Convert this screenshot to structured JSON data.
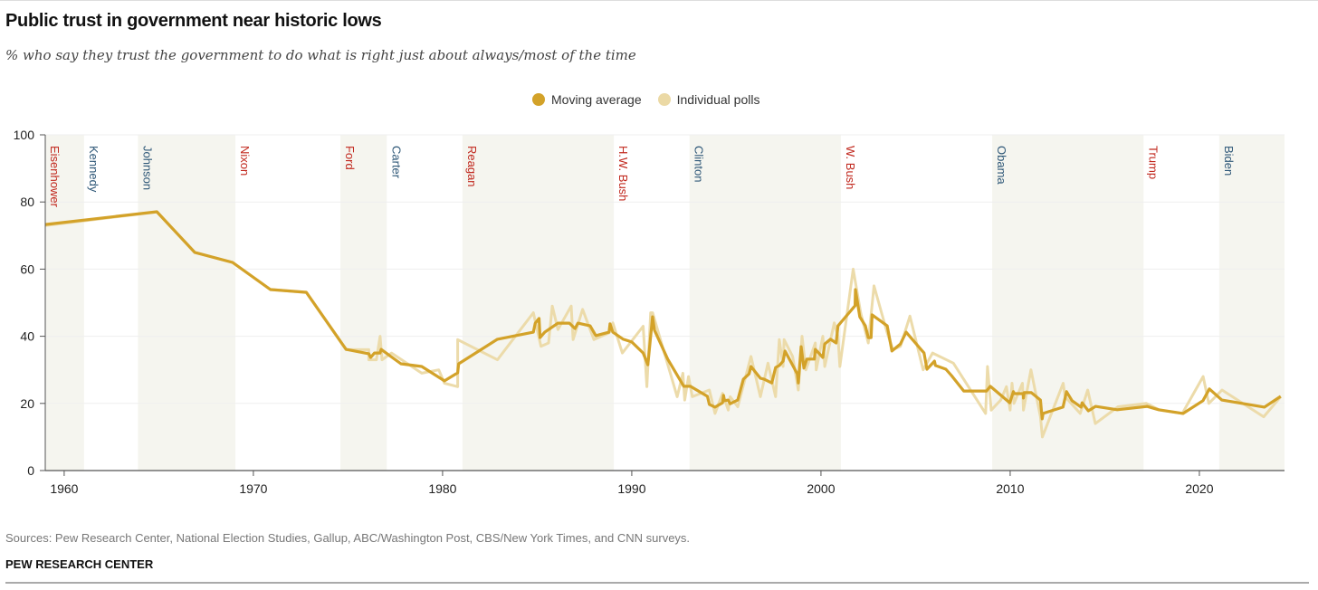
{
  "header": {
    "title": "Public trust in government near historic lows",
    "subtitle": "% who say they trust the government to do what is right just about always/most of the time"
  },
  "footer": {
    "source": "Sources: Pew Research Center, National Election Studies, Gallup, ABC/Washington Post, CBS/New York Times, and CNN surveys.",
    "org": "PEW RESEARCH CENTER"
  },
  "colors": {
    "moving_average": "#D3A229",
    "individual_polls": "#EBD9A5",
    "band": "#F5F5EF",
    "republican": "#C1281E",
    "democrat": "#2F5878",
    "axis": "#555555",
    "grid": "#EFEFEF"
  },
  "chart_data": {
    "type": "line",
    "title": "Public trust in government near historic lows",
    "xlabel": "",
    "ylabel": "",
    "xlim": [
      1959.0,
      2024.5
    ],
    "ylim": [
      0,
      100
    ],
    "x_ticks": [
      1960,
      1970,
      1980,
      1990,
      2000,
      2010,
      2020
    ],
    "y_ticks": [
      0,
      20,
      40,
      60,
      80,
      100
    ],
    "grid": true,
    "legend": {
      "placement": "top-center",
      "entries": [
        "Moving average",
        "Individual polls"
      ]
    },
    "presidents": [
      {
        "name": "Eisenhower",
        "start": 1959.0,
        "end": 1961.05,
        "party": "R",
        "shaded": true
      },
      {
        "name": "Kennedy",
        "start": 1961.05,
        "end": 1963.9,
        "party": "D",
        "shaded": false
      },
      {
        "name": "Johnson",
        "start": 1963.9,
        "end": 1969.05,
        "party": "D",
        "shaded": true
      },
      {
        "name": "Nixon",
        "start": 1969.05,
        "end": 1974.6,
        "party": "R",
        "shaded": false
      },
      {
        "name": "Ford",
        "start": 1974.6,
        "end": 1977.05,
        "party": "R",
        "shaded": true
      },
      {
        "name": "Carter",
        "start": 1977.05,
        "end": 1981.05,
        "party": "D",
        "shaded": false
      },
      {
        "name": "Reagan",
        "start": 1981.05,
        "end": 1989.05,
        "party": "R",
        "shaded": true
      },
      {
        "name": "H.W. Bush",
        "start": 1989.05,
        "end": 1993.05,
        "party": "R",
        "shaded": false
      },
      {
        "name": "Clinton",
        "start": 1993.05,
        "end": 2001.05,
        "party": "D",
        "shaded": true
      },
      {
        "name": "W. Bush",
        "start": 2001.05,
        "end": 2009.05,
        "party": "R",
        "shaded": false
      },
      {
        "name": "Obama",
        "start": 2009.05,
        "end": 2017.05,
        "party": "D",
        "shaded": true
      },
      {
        "name": "Trump",
        "start": 2017.05,
        "end": 2021.05,
        "party": "R",
        "shaded": false
      },
      {
        "name": "Biden",
        "start": 2021.05,
        "end": 2024.5,
        "party": "D",
        "shaded": true
      }
    ],
    "series": [
      {
        "name": "Individual polls",
        "points": [
          [
            1959.0,
            73
          ],
          [
            1964.9,
            77
          ],
          [
            1966.9,
            65
          ],
          [
            1968.9,
            62
          ],
          [
            1970.9,
            54
          ],
          [
            1972.8,
            53
          ],
          [
            1974.9,
            36
          ],
          [
            1976.1,
            36
          ],
          [
            1976.1,
            33
          ],
          [
            1976.5,
            33
          ],
          [
            1976.7,
            40
          ],
          [
            1976.8,
            33
          ],
          [
            1977.3,
            35
          ],
          [
            1978.9,
            29
          ],
          [
            1979.8,
            30
          ],
          [
            1980.1,
            26
          ],
          [
            1980.8,
            25
          ],
          [
            1980.8,
            39
          ],
          [
            1982.9,
            33
          ],
          [
            1984.8,
            47
          ],
          [
            1985.2,
            37
          ],
          [
            1985.6,
            38
          ],
          [
            1985.8,
            49
          ],
          [
            1986.1,
            42
          ],
          [
            1986.8,
            49
          ],
          [
            1986.9,
            39
          ],
          [
            1987.4,
            48
          ],
          [
            1988.0,
            39
          ],
          [
            1988.8,
            41
          ],
          [
            1989.0,
            44
          ],
          [
            1989.5,
            35
          ],
          [
            1990.6,
            43
          ],
          [
            1990.8,
            25
          ],
          [
            1991.0,
            47
          ],
          [
            1991.1,
            47
          ],
          [
            1992.4,
            22
          ],
          [
            1992.7,
            29
          ],
          [
            1992.8,
            21
          ],
          [
            1993.0,
            28
          ],
          [
            1993.2,
            22
          ],
          [
            1994.1,
            24
          ],
          [
            1994.4,
            17
          ],
          [
            1994.8,
            23
          ],
          [
            1995.1,
            18
          ],
          [
            1995.2,
            22
          ],
          [
            1995.6,
            19
          ],
          [
            1996.3,
            34
          ],
          [
            1996.8,
            22
          ],
          [
            1997.2,
            32
          ],
          [
            1997.6,
            22
          ],
          [
            1997.8,
            39
          ],
          [
            1998.0,
            31
          ],
          [
            1998.05,
            39
          ],
          [
            1998.5,
            34
          ],
          [
            1998.8,
            24
          ],
          [
            1999.0,
            40
          ],
          [
            1999.2,
            30
          ],
          [
            1999.7,
            38
          ],
          [
            1999.75,
            30
          ],
          [
            2000.1,
            40
          ],
          [
            2000.2,
            31
          ],
          [
            2000.7,
            44
          ],
          [
            2000.9,
            40
          ],
          [
            2001.0,
            31
          ],
          [
            2001.7,
            60
          ],
          [
            2002.1,
            47
          ],
          [
            2002.5,
            38
          ],
          [
            2002.8,
            55
          ],
          [
            2003.5,
            41
          ],
          [
            2003.8,
            36
          ],
          [
            2004.2,
            37
          ],
          [
            2004.7,
            46
          ],
          [
            2005.4,
            30
          ],
          [
            2005.9,
            35
          ],
          [
            2007.0,
            32
          ],
          [
            2008.7,
            17
          ],
          [
            2008.8,
            31
          ],
          [
            2009.0,
            18
          ],
          [
            2009.5,
            21
          ],
          [
            2009.8,
            25
          ],
          [
            2010.0,
            18
          ],
          [
            2010.1,
            26
          ],
          [
            2010.2,
            20
          ],
          [
            2010.65,
            26
          ],
          [
            2010.7,
            18
          ],
          [
            2011.1,
            30
          ],
          [
            2011.6,
            16
          ],
          [
            2011.7,
            10
          ],
          [
            2012.8,
            26
          ],
          [
            2012.9,
            22
          ],
          [
            2013.7,
            17
          ],
          [
            2014.1,
            24
          ],
          [
            2014.5,
            14
          ],
          [
            2015.7,
            19
          ],
          [
            2017.2,
            20
          ],
          [
            2017.9,
            18
          ],
          [
            2019.1,
            17
          ],
          [
            2020.2,
            28
          ],
          [
            2020.5,
            20
          ],
          [
            2021.2,
            24
          ],
          [
            2023.4,
            16
          ],
          [
            2024.3,
            22
          ]
        ]
      },
      {
        "name": "Moving average",
        "points": [
          [
            1959.0,
            73.3
          ],
          [
            1964.9,
            77.1
          ],
          [
            1966.9,
            65
          ],
          [
            1968.9,
            62
          ],
          [
            1970.9,
            53.9
          ],
          [
            1972.8,
            53.1
          ],
          [
            1974.9,
            36.1
          ],
          [
            1976.1,
            34.8
          ],
          [
            1976.2,
            33.7
          ],
          [
            1976.4,
            35
          ],
          [
            1976.7,
            35
          ],
          [
            1976.75,
            36.1
          ],
          [
            1977.8,
            31.8
          ],
          [
            1978.9,
            31
          ],
          [
            1980.1,
            26.7
          ],
          [
            1980.8,
            29.1
          ],
          [
            1980.85,
            31.8
          ],
          [
            1982.9,
            39.1
          ],
          [
            1984.8,
            41.2
          ],
          [
            1984.9,
            43.9
          ],
          [
            1985.1,
            45.3
          ],
          [
            1985.15,
            39.6
          ],
          [
            1985.4,
            41.2
          ],
          [
            1986.1,
            43.9
          ],
          [
            1986.7,
            43.9
          ],
          [
            1987.0,
            42.3
          ],
          [
            1987.15,
            43.9
          ],
          [
            1987.8,
            43.1
          ],
          [
            1988.1,
            40.2
          ],
          [
            1988.8,
            41.2
          ],
          [
            1988.85,
            43.7
          ],
          [
            1989.0,
            41.2
          ],
          [
            1989.55,
            39.1
          ],
          [
            1990.0,
            38.3
          ],
          [
            1990.6,
            35
          ],
          [
            1990.85,
            31.5
          ],
          [
            1991.1,
            45.8
          ],
          [
            1991.2,
            41.8
          ],
          [
            1991.9,
            33.2
          ],
          [
            1992.75,
            25.1
          ],
          [
            1993.1,
            25.1
          ],
          [
            1994.0,
            22.1
          ],
          [
            1994.1,
            19.7
          ],
          [
            1994.4,
            18.9
          ],
          [
            1994.8,
            20.2
          ],
          [
            1994.85,
            22.4
          ],
          [
            1994.9,
            20.8
          ],
          [
            1995.1,
            21
          ],
          [
            1995.2,
            19.9
          ],
          [
            1995.6,
            21
          ],
          [
            1995.9,
            27.2
          ],
          [
            1996.2,
            28.8
          ],
          [
            1996.3,
            31
          ],
          [
            1996.8,
            27.5
          ],
          [
            1997.0,
            27.2
          ],
          [
            1997.4,
            26.1
          ],
          [
            1997.6,
            30.7
          ],
          [
            1997.8,
            31.3
          ],
          [
            1998.0,
            32.6
          ],
          [
            1998.1,
            35.6
          ],
          [
            1998.75,
            28.8
          ],
          [
            1998.8,
            26.1
          ],
          [
            1998.95,
            36.9
          ],
          [
            1999.1,
            30.5
          ],
          [
            1999.25,
            33.2
          ],
          [
            1999.65,
            33.2
          ],
          [
            1999.7,
            36.1
          ],
          [
            2000.1,
            33.7
          ],
          [
            2000.2,
            37.7
          ],
          [
            2000.5,
            39.1
          ],
          [
            2000.8,
            38
          ],
          [
            2000.9,
            43.1
          ],
          [
            2001.8,
            49.1
          ],
          [
            2001.82,
            53.9
          ],
          [
            2002.05,
            45.8
          ],
          [
            2002.35,
            43.1
          ],
          [
            2002.5,
            39.6
          ],
          [
            2002.65,
            39.6
          ],
          [
            2002.7,
            46.4
          ],
          [
            2003.5,
            43.1
          ],
          [
            2003.75,
            35.6
          ],
          [
            2004.2,
            37.7
          ],
          [
            2004.5,
            41.2
          ],
          [
            2005.45,
            35
          ],
          [
            2005.6,
            30.2
          ],
          [
            2006.0,
            32.6
          ],
          [
            2006.05,
            31.3
          ],
          [
            2006.6,
            30.2
          ],
          [
            2006.9,
            28.3
          ],
          [
            2007.55,
            23.7
          ],
          [
            2008.75,
            23.7
          ],
          [
            2008.95,
            25.1
          ],
          [
            2009.98,
            20.2
          ],
          [
            2010.17,
            23.5
          ],
          [
            2010.22,
            22.9
          ],
          [
            2010.69,
            22.9
          ],
          [
            2010.7,
            21.6
          ],
          [
            2010.74,
            23.2
          ],
          [
            2011.12,
            23.2
          ],
          [
            2011.6,
            21
          ],
          [
            2011.69,
            15.4
          ],
          [
            2011.74,
            17
          ],
          [
            2012.79,
            18.9
          ],
          [
            2012.98,
            23.5
          ],
          [
            2013.27,
            20.8
          ],
          [
            2013.75,
            18.9
          ],
          [
            2013.8,
            20.2
          ],
          [
            2014.13,
            17.8
          ],
          [
            2014.51,
            19.1
          ],
          [
            2015.66,
            18.1
          ],
          [
            2017.23,
            19.1
          ],
          [
            2017.85,
            18.1
          ],
          [
            2019.14,
            17
          ],
          [
            2020.19,
            20.8
          ],
          [
            2020.53,
            24.3
          ],
          [
            2021.19,
            21
          ],
          [
            2023.44,
            18.9
          ],
          [
            2024.3,
            22.1
          ]
        ]
      }
    ]
  }
}
